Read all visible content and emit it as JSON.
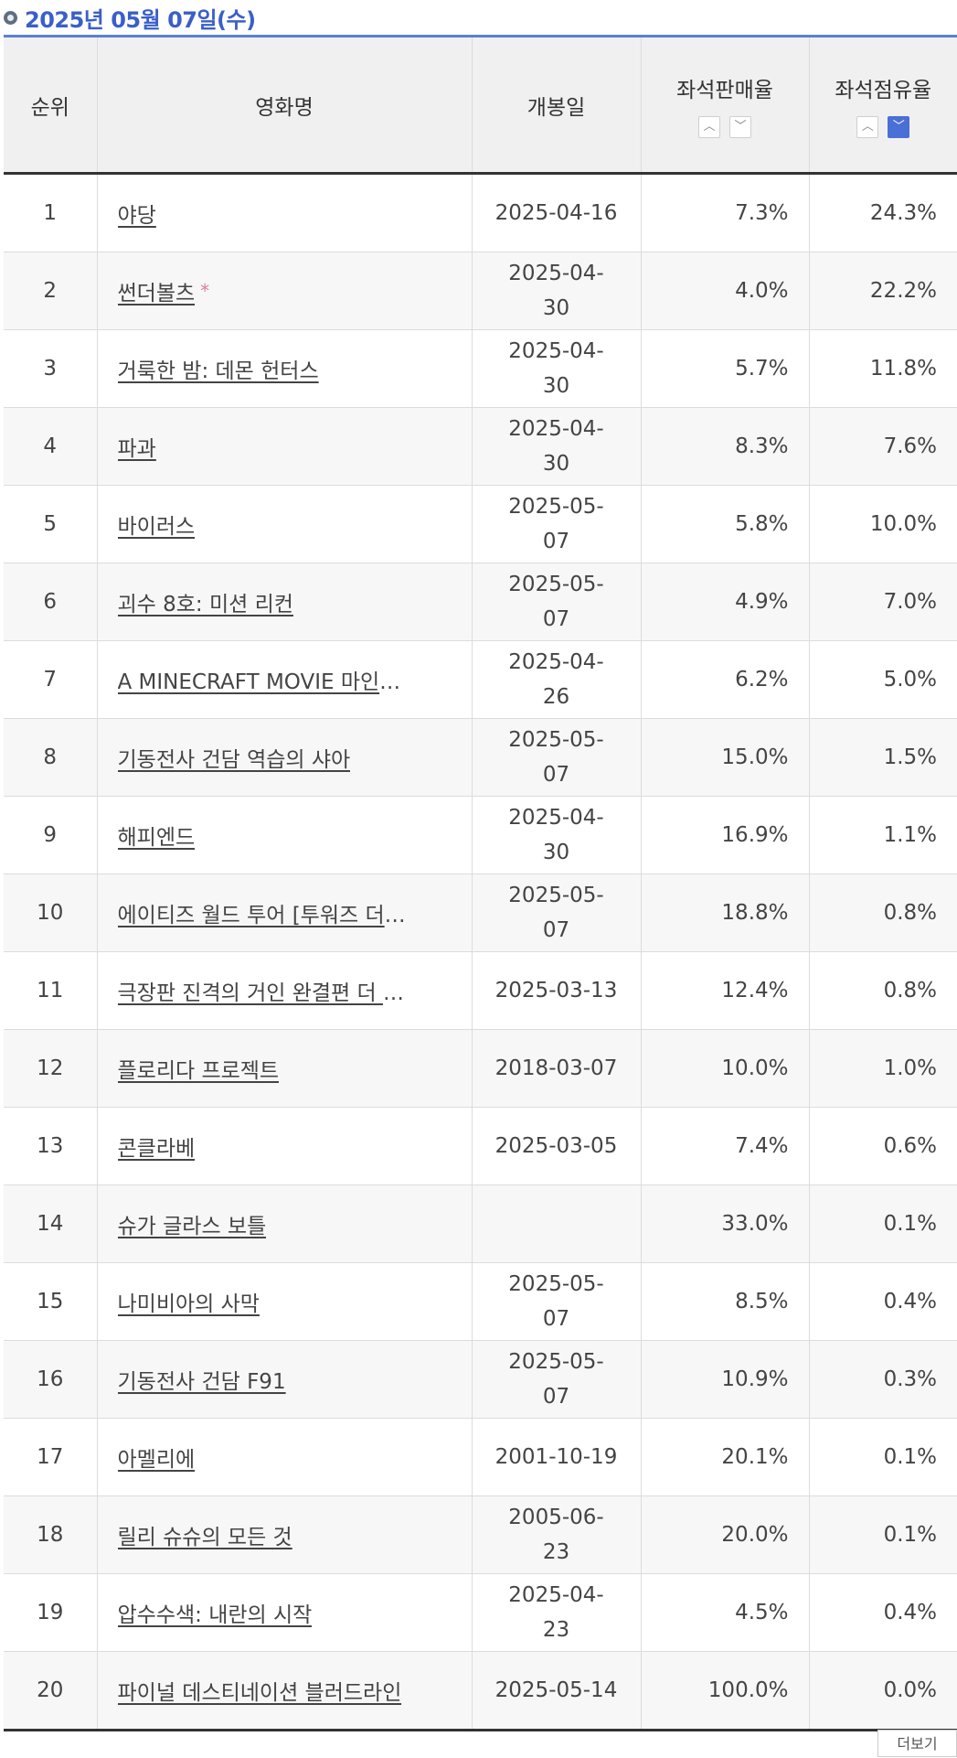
{
  "header": {
    "date": "2025년 05월 07일(수)",
    "icon": "circle-bullet-icon"
  },
  "table": {
    "columns": {
      "rank": "순위",
      "title": "영화명",
      "release": "개봉일",
      "sales": "좌석판매율",
      "share": "좌석점유율"
    },
    "sort_icons": [
      "chevron-up-icon",
      "chevron-down-icon"
    ],
    "active_sort": "share-desc",
    "rows": [
      {
        "rank": "1",
        "title": "야당",
        "release": "2025-04-16",
        "sales": "7.3%",
        "share": "24.3%"
      },
      {
        "rank": "2",
        "title": "썬더볼츠",
        "star": "*",
        "release": "2025-04-30",
        "sales": "4.0%",
        "share": "22.2%"
      },
      {
        "rank": "3",
        "title": "거룩한 밤: 데몬 헌터스",
        "release": "2025-04-30",
        "sales": "5.7%",
        "share": "11.8%"
      },
      {
        "rank": "4",
        "title": "파과",
        "release": "2025-04-30",
        "sales": "8.3%",
        "share": "7.6%"
      },
      {
        "rank": "5",
        "title": "바이러스",
        "release": "2025-05-07",
        "sales": "5.8%",
        "share": "10.0%"
      },
      {
        "rank": "6",
        "title": "괴수 8호: 미션 리컨",
        "release": "2025-05-07",
        "sales": "4.9%",
        "share": "7.0%"
      },
      {
        "rank": "7",
        "title": "A MINECRAFT MOVIE 마인크…",
        "release": "2025-04-26",
        "sales": "6.2%",
        "share": "5.0%"
      },
      {
        "rank": "8",
        "title": "기동전사 건담 역습의 샤아",
        "release": "2025-05-07",
        "sales": "15.0%",
        "share": "1.5%"
      },
      {
        "rank": "9",
        "title": "해피엔드",
        "release": "2025-04-30",
        "sales": "16.9%",
        "share": "1.1%"
      },
      {
        "rank": "10",
        "title": "에이티즈 월드 투어 [투워즈 더 라…",
        "release": "2025-05-07",
        "sales": "18.8%",
        "share": "0.8%"
      },
      {
        "rank": "11",
        "title": "극장판 진격의 거인 완결편 더 라스…",
        "release": "2025-03-13",
        "sales": "12.4%",
        "share": "0.8%"
      },
      {
        "rank": "12",
        "title": "플로리다 프로젝트",
        "release": "2018-03-07",
        "sales": "10.0%",
        "share": "1.0%"
      },
      {
        "rank": "13",
        "title": "콘클라베",
        "release": "2025-03-05",
        "sales": "7.4%",
        "share": "0.6%"
      },
      {
        "rank": "14",
        "title": "슈가 글라스 보틀",
        "release": "",
        "sales": "33.0%",
        "share": "0.1%"
      },
      {
        "rank": "15",
        "title": "나미비아의 사막",
        "release": "2025-05-07",
        "sales": "8.5%",
        "share": "0.4%"
      },
      {
        "rank": "16",
        "title": "기동전사 건담 F91",
        "release": "2025-05-07",
        "sales": "10.9%",
        "share": "0.3%"
      },
      {
        "rank": "17",
        "title": "아멜리에",
        "release": "2001-10-19",
        "sales": "20.1%",
        "share": "0.1%"
      },
      {
        "rank": "18",
        "title": "릴리 슈슈의 모든 것",
        "release": "2005-06-23",
        "sales": "20.0%",
        "share": "0.1%"
      },
      {
        "rank": "19",
        "title": "압수수색: 내란의 시작",
        "release": "2025-04-23",
        "sales": "4.5%",
        "share": "0.4%"
      },
      {
        "rank": "20",
        "title": "파이널 데스티네이션 블러드라인",
        "release": "2025-05-14",
        "sales": "100.0%",
        "share": "0.0%"
      }
    ]
  },
  "footer": {
    "more_label": "더보기"
  }
}
